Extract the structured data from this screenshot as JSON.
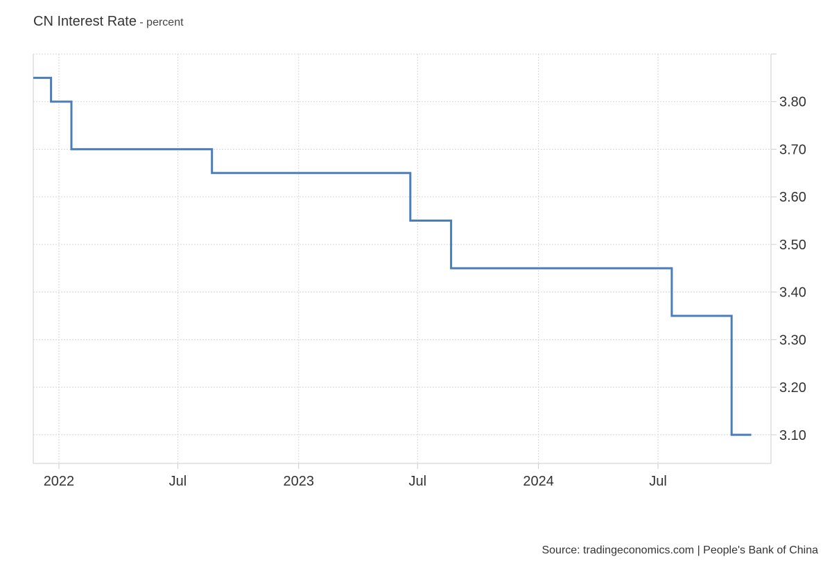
{
  "header": {
    "title": "CN Interest Rate",
    "subtitle": "- percent"
  },
  "footer": {
    "source": "Source: tradingeconomics.com | People's Bank of China"
  },
  "colors": {
    "line": "#4a7ebb",
    "grid": "#d6d6d6",
    "axis": "#cccccc"
  },
  "chart_data": {
    "type": "line",
    "step": true,
    "title": "CN Interest Rate",
    "ylabel": "percent",
    "y_axis_position": "right",
    "grid": true,
    "xlim": [
      "2021-11-23",
      "2024-12-20"
    ],
    "ylim": [
      3.04,
      3.9
    ],
    "x_ticks": [
      {
        "date": "2022-01-01",
        "label": "2022"
      },
      {
        "date": "2022-07-01",
        "label": "Jul"
      },
      {
        "date": "2023-01-01",
        "label": "2023"
      },
      {
        "date": "2023-07-01",
        "label": "Jul"
      },
      {
        "date": "2024-01-01",
        "label": "2024"
      },
      {
        "date": "2024-07-01",
        "label": "Jul"
      }
    ],
    "y_ticks": [
      3.1,
      3.2,
      3.3,
      3.4,
      3.5,
      3.6,
      3.7,
      3.8
    ],
    "y_tick_labels": [
      "3.10",
      "3.20",
      "3.30",
      "3.40",
      "3.50",
      "3.60",
      "3.70",
      "3.80"
    ],
    "series": [
      {
        "points": [
          {
            "x": "2021-11-23",
            "y": 3.85
          },
          {
            "x": "2021-12-20",
            "y": 3.8
          },
          {
            "x": "2022-01-20",
            "y": 3.7
          },
          {
            "x": "2022-08-22",
            "y": 3.65
          },
          {
            "x": "2023-06-20",
            "y": 3.55
          },
          {
            "x": "2023-08-21",
            "y": 3.45
          },
          {
            "x": "2024-07-22",
            "y": 3.35
          },
          {
            "x": "2024-10-21",
            "y": 3.1
          },
          {
            "x": "2024-11-20",
            "y": 3.1
          }
        ]
      }
    ]
  }
}
